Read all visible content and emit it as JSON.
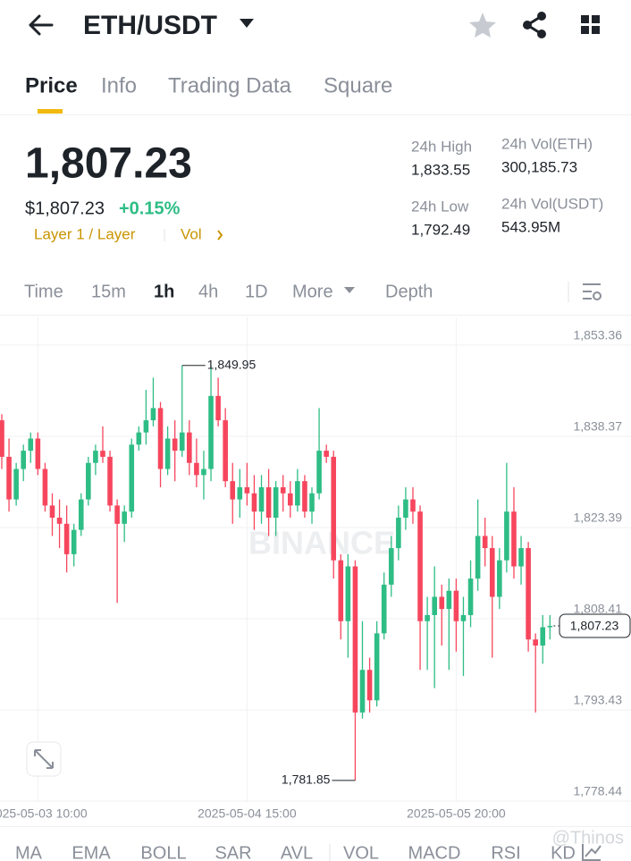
{
  "header": {
    "title": "ETH/USDT"
  },
  "tabs": [
    "Price",
    "Info",
    "Trading Data",
    "Square"
  ],
  "price": {
    "last": "1,807.23",
    "usd": "$1,807.23",
    "change": "+0.15%",
    "tags": [
      "Layer 1 / Layer",
      "Vol"
    ]
  },
  "stats": [
    {
      "label": "24h High",
      "value": "1,833.55"
    },
    {
      "label": "24h Vol(ETH)",
      "value": "300,185.73"
    },
    {
      "label": "24h Low",
      "value": "1,792.49"
    },
    {
      "label": "24h Vol(USDT)",
      "value": "543.95M"
    }
  ],
  "intervals": [
    "Time",
    "15m",
    "1h",
    "4h",
    "1D",
    "More",
    "Depth"
  ],
  "indicators": [
    "MA",
    "EMA",
    "BOLL",
    "SAR",
    "AVL",
    "VOL",
    "MACD",
    "RSI",
    "KD"
  ],
  "watermarks": [
    "BINANCE",
    "@Thinos"
  ],
  "chart_data": {
    "type": "candlestick",
    "categories": [
      null,
      null,
      null,
      null,
      null,
      "2025-05-03 10:00",
      null,
      null,
      null,
      null,
      null,
      null,
      null,
      null,
      null,
      null,
      null,
      null,
      null,
      null,
      null,
      null,
      null,
      null,
      null,
      null,
      null,
      null,
      null,
      null,
      null,
      null,
      null,
      null,
      "2025-05-04 15:00",
      null,
      null,
      null,
      null,
      null,
      null,
      null,
      null,
      null,
      null,
      null,
      null,
      null,
      null,
      null,
      null,
      null,
      null,
      null,
      null,
      null,
      null,
      null,
      null,
      null,
      null,
      null,
      null,
      "2025-05-05 20:00",
      null,
      null,
      null,
      null,
      null,
      null,
      null,
      null,
      null,
      null,
      null,
      null,
      null
    ],
    "open": [
      1841,
      1835,
      1828,
      1833,
      1836,
      1838,
      1833,
      1827,
      1825,
      1824,
      1819,
      1823,
      1828,
      1834,
      1836,
      1835,
      1827,
      1824,
      1826,
      1837,
      1839,
      1841,
      1843,
      1833,
      1838,
      1836,
      1839,
      1834,
      1832,
      1833,
      1845,
      1841,
      1831,
      1828,
      1830,
      1829,
      1826,
      1830,
      1825,
      1830,
      1829,
      1827,
      1831,
      1826,
      1829,
      1836,
      1835,
      1818,
      1808,
      1817,
      1793,
      1800,
      1795,
      1806,
      1814,
      1820,
      1825,
      1828,
      1826,
      1808,
      1809,
      1812,
      1810,
      1813,
      1808,
      1809,
      1815,
      1822,
      1820,
      1812,
      1818,
      1826,
      1817,
      1820,
      1805,
      1804,
      1807
    ],
    "high": [
      1842,
      1838,
      1834,
      1837,
      1839,
      1839,
      1834,
      1829,
      1828,
      1827,
      1824,
      1829,
      1835,
      1837,
      1840,
      1836,
      1828,
      1827,
      1838,
      1840,
      1846,
      1848,
      1844,
      1840,
      1841,
      1850,
      1841,
      1838,
      1836,
      1849.95,
      1848,
      1843,
      1834,
      1833,
      1834,
      1832,
      1832,
      1833,
      1831,
      1832,
      1831,
      1833,
      1832,
      1830,
      1843,
      1837,
      1836,
      1819,
      1819,
      1818,
      1808,
      1802,
      1808,
      1816,
      1822,
      1827,
      1830,
      1830,
      1827,
      1812,
      1817,
      1814,
      1815,
      1815,
      1812,
      1818,
      1828,
      1825,
      1822,
      1820,
      1834,
      1830,
      1822,
      1821,
      1806,
      1809,
      1809
    ],
    "low": [
      1833,
      1826,
      1827,
      1831,
      1834,
      1832,
      1826,
      1822,
      1820,
      1816,
      1817,
      1822,
      1827,
      1832,
      1834,
      1826,
      1811,
      1821,
      1825,
      1836,
      1837,
      1840,
      1830,
      1832,
      1831,
      1835,
      1832,
      1830,
      1828,
      1831,
      1840,
      1830,
      1824,
      1825,
      1827,
      1823,
      1824,
      1822,
      1822,
      1826,
      1825,
      1826,
      1825,
      1824,
      1828,
      1834,
      1815,
      1805,
      1802,
      1781.85,
      1792,
      1793,
      1794,
      1805,
      1812,
      1818,
      1823,
      1824,
      1800,
      1800,
      1797,
      1804,
      1800,
      1803,
      1799,
      1807,
      1813,
      1817,
      1802,
      1810,
      1816,
      1815,
      1814,
      1803,
      1793,
      1801,
      1805
    ],
    "close": [
      1835,
      1828,
      1833,
      1836,
      1838,
      1833,
      1827,
      1825,
      1824,
      1819,
      1823,
      1828,
      1834,
      1836,
      1835,
      1827,
      1824,
      1826,
      1837,
      1839,
      1841,
      1843,
      1833,
      1838,
      1836,
      1839,
      1834,
      1832,
      1833,
      1845,
      1841,
      1831,
      1828,
      1830,
      1829,
      1826,
      1830,
      1825,
      1830,
      1829,
      1827,
      1831,
      1826,
      1829,
      1836,
      1835,
      1818,
      1808,
      1817,
      1793,
      1800,
      1795,
      1806,
      1814,
      1820,
      1825,
      1828,
      1826,
      1808,
      1809,
      1812,
      1810,
      1813,
      1808,
      1809,
      1815,
      1822,
      1820,
      1812,
      1818,
      1826,
      1817,
      1820,
      1805,
      1804,
      1807,
      1807.23
    ],
    "max_label": "1,849.95",
    "min_label": "1,781.85",
    "last_label": "1,807.23",
    "ylim": [
      1778.3,
      1857.9
    ],
    "yticks": [
      {
        "value": 1778.44,
        "label": "1,778.44"
      },
      {
        "value": 1793.43,
        "label": "1,793.43"
      },
      {
        "value": 1808.41,
        "label": "1,808.41"
      },
      {
        "value": 1823.39,
        "label": "1,823.39"
      },
      {
        "value": 1838.37,
        "label": "1,838.37"
      },
      {
        "value": 1853.36,
        "label": "1,853.36"
      }
    ],
    "grid": true,
    "up_color": "#2ebd85",
    "down_color": "#f6465d"
  }
}
